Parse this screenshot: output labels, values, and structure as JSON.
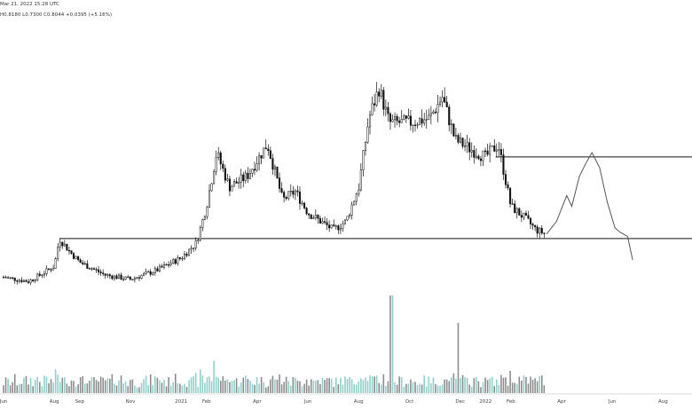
{
  "header": {
    "timestamp": "Mar 21, 2022 15:28 UTC",
    "ohlc": "H0.8180  L0.7300  C0.8044  +0.0395 (+5.16%)"
  },
  "colors": {
    "up": "#ffffff",
    "down": "#111111",
    "wick": "#111111",
    "volume_up": "#8fd0c8",
    "volume_down": "#8c8c8c",
    "level_line": "#111111",
    "projection": "#555555"
  },
  "chart_data": {
    "type": "candlestick",
    "title": "",
    "xlabel": "",
    "ylabel": "",
    "x_ticks": [
      "Jun",
      "Aug",
      "Sep",
      "Nov",
      "2021",
      "Feb",
      "Apr",
      "Jun",
      "Aug",
      "Oct",
      "Dec",
      "2022",
      "Feb",
      "Apr",
      "Jun",
      "Aug"
    ],
    "x_tick_months": [
      0,
      2,
      3,
      5,
      7,
      8,
      10,
      12,
      14,
      16,
      18,
      19,
      20,
      22,
      24,
      26
    ],
    "months_visible": 27,
    "ylim": [
      0.1,
      1.6
    ],
    "grid": false,
    "levels": [
      0.58,
      0.96
    ],
    "anchors": [
      [
        0,
        0.4
      ],
      [
        1,
        0.38
      ],
      [
        2,
        0.45
      ],
      [
        2.2,
        0.58
      ],
      [
        2.6,
        0.52
      ],
      [
        3,
        0.47
      ],
      [
        4,
        0.41
      ],
      [
        5,
        0.39
      ],
      [
        6,
        0.43
      ],
      [
        7,
        0.49
      ],
      [
        7.6,
        0.56
      ],
      [
        8,
        0.73
      ],
      [
        8.4,
        0.98
      ],
      [
        8.9,
        0.82
      ],
      [
        9.6,
        0.87
      ],
      [
        10.4,
        1.02
      ],
      [
        11.0,
        0.76
      ],
      [
        11.5,
        0.8
      ],
      [
        12,
        0.7
      ],
      [
        13,
        0.62
      ],
      [
        13.5,
        0.66
      ],
      [
        14,
        0.82
      ],
      [
        14.4,
        1.14
      ],
      [
        14.8,
        1.28
      ],
      [
        15.2,
        1.12
      ],
      [
        16,
        1.12
      ],
      [
        16.8,
        1.14
      ],
      [
        17.3,
        1.24
      ],
      [
        17.8,
        1.04
      ],
      [
        18.5,
        0.99
      ],
      [
        19,
        0.96
      ],
      [
        19.5,
        1.02
      ],
      [
        20,
        0.73
      ],
      [
        20.5,
        0.68
      ],
      [
        21,
        0.62
      ],
      [
        21.4,
        0.6
      ]
    ],
    "volume_spikes": [
      [
        15.3,
        1.0
      ],
      [
        17.9,
        0.72
      ],
      [
        8.3,
        0.33
      ]
    ],
    "projection": [
      [
        21.4,
        0.6
      ],
      [
        21.8,
        0.66
      ],
      [
        22.2,
        0.78
      ],
      [
        22.4,
        0.73
      ],
      [
        22.7,
        0.87
      ],
      [
        23.0,
        0.94
      ],
      [
        23.2,
        0.98
      ],
      [
        23.5,
        0.91
      ],
      [
        23.8,
        0.75
      ],
      [
        24.1,
        0.63
      ],
      [
        24.3,
        0.61
      ],
      [
        24.6,
        0.59
      ],
      [
        24.8,
        0.48
      ]
    ]
  }
}
